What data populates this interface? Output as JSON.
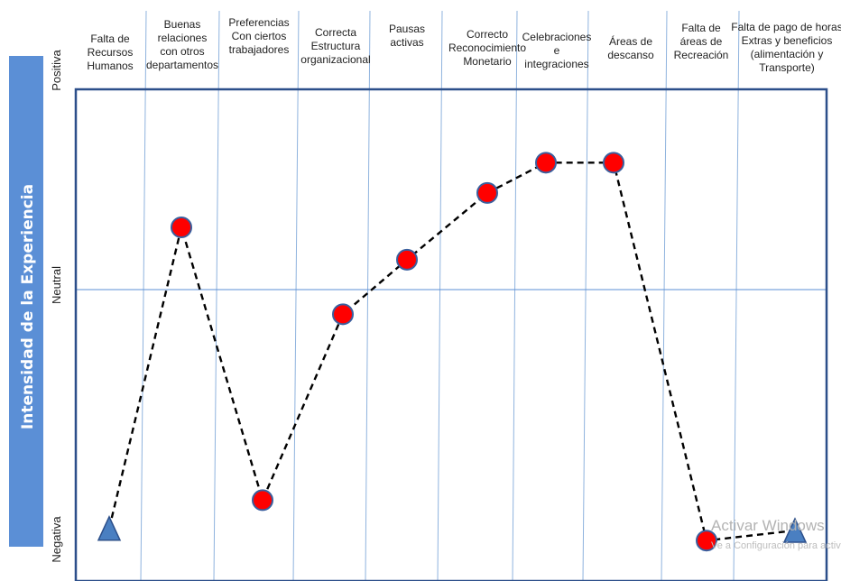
{
  "chart_data": {
    "type": "line",
    "y_axis_title": "Intensidad de la Experiencia",
    "y_levels": [
      "Negativa",
      "Neutral",
      "Positiva"
    ],
    "ylim": [
      -1,
      1
    ],
    "categories": [
      [
        "Falta de",
        "Recursos",
        "Humanos"
      ],
      [
        "Buenas",
        "relaciones",
        "con otros",
        "departamentos"
      ],
      [
        "Preferencias",
        "Con ciertos",
        "trabajadores"
      ],
      [
        "Correcta",
        "Estructura",
        "organizacional"
      ],
      [
        "Pausas",
        "activas"
      ],
      [
        "Correcto",
        "Reconocimiento",
        "Monetario"
      ],
      [
        "Celebraciones",
        "e",
        "integraciones"
      ],
      [
        "Áreas de",
        "descanso"
      ],
      [
        "Falta de",
        "áreas de",
        "Recreación"
      ],
      [
        "Falta de pago de horas",
        "Extras y beneficios",
        "(alimentación y",
        "Transporte)"
      ]
    ],
    "series": [
      {
        "values": [
          -0.99,
          0.5,
          -0.85,
          0.07,
          0.34,
          0.67,
          0.82,
          0.82,
          -1.05,
          -1.0
        ],
        "markers": [
          "triangle",
          "circle",
          "circle",
          "circle",
          "circle",
          "circle",
          "circle",
          "circle",
          "circle",
          "triangle"
        ],
        "line_style": "dashed"
      }
    ],
    "colors": {
      "point_fill": "#ff0000",
      "point_stroke": "#3a5f9e",
      "triangle_fill": "#4a7fc1",
      "frame": "#2c4f8a",
      "grid": "#8fb3de",
      "sidebar": "#5b8fd6"
    }
  },
  "watermark": {
    "line1": "Activar Windows",
    "line2": "Ve a Configuración para activar Windows."
  }
}
